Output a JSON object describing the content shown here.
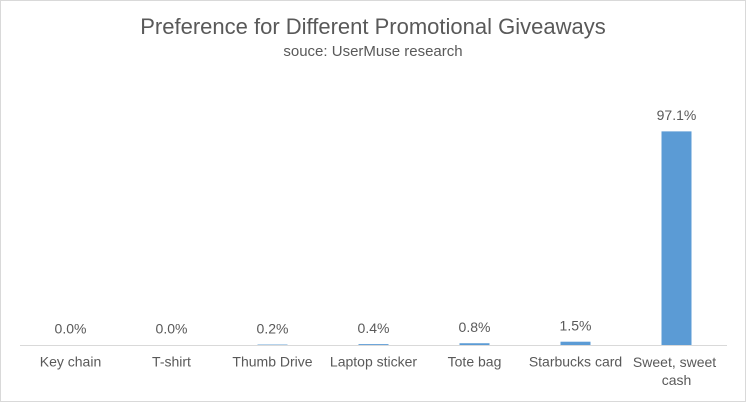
{
  "chart_data": {
    "type": "bar",
    "title": "Preference for Different Promotional Giveaways",
    "subtitle": "souce: UserMuse research",
    "categories": [
      "Key chain",
      "T-shirt",
      "Thumb Drive",
      "Laptop sticker",
      "Tote bag",
      "Starbucks card",
      "Sweet, sweet cash"
    ],
    "values": [
      0,
      0,
      0.2,
      0.4,
      0.8,
      1.5,
      97.1
    ],
    "value_labels": [
      "0.0%",
      "0.0%",
      "0.2%",
      "0.4%",
      "0.8%",
      "1.5%",
      "97.1%"
    ],
    "color": "#5b9bd5",
    "ylim": [
      0,
      100
    ]
  }
}
